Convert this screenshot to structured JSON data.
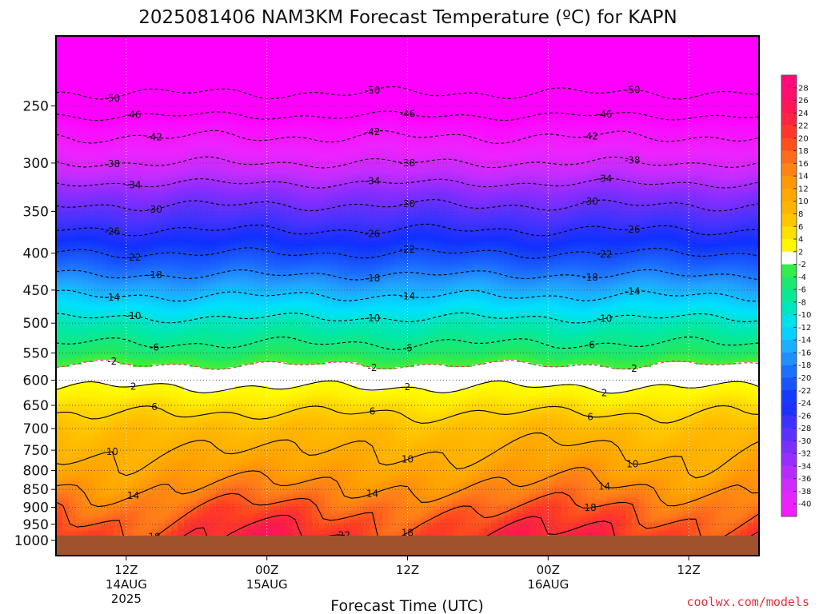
{
  "chart_data": {
    "type": "heatmap",
    "title": "2025081406 NAM3KM Forecast Temperature (ºC) for KAPN",
    "xlabel": "Forecast Time (UTC)",
    "ylabel": "",
    "credit": "coolwx.com/models",
    "y_scale": "log-pressure",
    "y_range_hPa": [
      1050,
      200
    ],
    "y_ticks": [
      250,
      300,
      350,
      400,
      450,
      500,
      550,
      600,
      650,
      700,
      750,
      800,
      850,
      900,
      950,
      1000
    ],
    "x_range_hours": [
      0,
      60
    ],
    "x_ticks": [
      {
        "hour": 6,
        "lines": [
          "12Z",
          "14AUG",
          "2025"
        ]
      },
      {
        "hour": 18,
        "lines": [
          "00Z",
          "15AUG"
        ]
      },
      {
        "hour": 30,
        "lines": [
          "12Z"
        ]
      },
      {
        "hour": 42,
        "lines": [
          "00Z",
          "16AUG"
        ]
      },
      {
        "hour": 54,
        "lines": [
          "12Z"
        ]
      }
    ],
    "colorbar_labels": [
      "28",
      "26",
      "24",
      "22",
      "20",
      "18",
      "16",
      "14",
      "12",
      "10",
      "8",
      "6",
      "4",
      "2",
      "-2",
      "-4",
      "-6",
      "-8",
      "-10",
      "-12",
      "-14",
      "-16",
      "-18",
      "-20",
      "-22",
      "-24",
      "-26",
      "-28",
      "-30",
      "-32",
      "-34",
      "-36",
      "-38",
      "-40"
    ],
    "contour_levels": [
      -50,
      -46,
      -42,
      -38,
      -34,
      -30,
      -26,
      -22,
      -18,
      -14,
      -10,
      -6,
      -2,
      2,
      6,
      10,
      14,
      18,
      22
    ],
    "sounding_profile": [
      {
        "p": 200,
        "t": -58
      },
      {
        "p": 230,
        "t": -52
      },
      {
        "p": 250,
        "t": -48
      },
      {
        "p": 270,
        "t": -43
      },
      {
        "p": 300,
        "t": -38
      },
      {
        "p": 330,
        "t": -32
      },
      {
        "p": 350,
        "t": -29
      },
      {
        "p": 400,
        "t": -22
      },
      {
        "p": 450,
        "t": -15
      },
      {
        "p": 500,
        "t": -9
      },
      {
        "p": 550,
        "t": -4.5
      },
      {
        "p": 580,
        "t": -1
      },
      {
        "p": 600,
        "t": 1
      },
      {
        "p": 620,
        "t": 2.5
      },
      {
        "p": 650,
        "t": 5
      },
      {
        "p": 700,
        "t": 8
      },
      {
        "p": 750,
        "t": 10
      },
      {
        "p": 800,
        "t": 12
      },
      {
        "p": 850,
        "t": 14.5
      },
      {
        "p": 900,
        "t": 17.5
      },
      {
        "p": 950,
        "t": 20
      },
      {
        "p": 1000,
        "t": 22
      }
    ],
    "diurnal_amplitude_C": 3,
    "ground_pressure_hPa": 985,
    "ground_color": "#a0522d"
  }
}
